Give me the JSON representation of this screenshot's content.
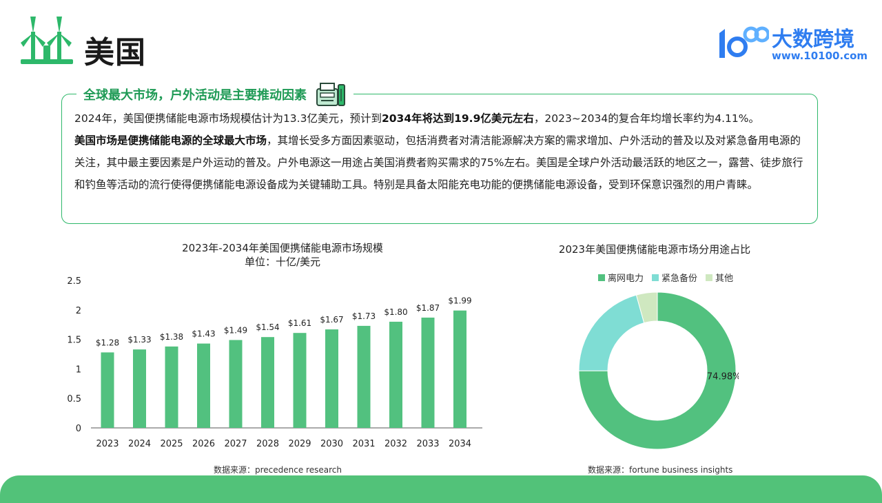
{
  "header": {
    "title": "美国",
    "brand_name": "大数跨境",
    "brand_url": "www.10100.com",
    "brand_logo_text": "100"
  },
  "card": {
    "heading": "全球最大市场，户外活动是主要推动因素",
    "p1_a": "2024年，美国便携储能电源市场规模估计为13.3亿美元，预计到",
    "p1_b": "2034年将达到19.9亿美元左右",
    "p1_c": "，2023~2034的复合年均增长率约为4.11%。",
    "p2_a": "美国市场是便携储能电源的全球最大市场",
    "p2_b": "，其增长受多方面因素驱动，包括消费者对清洁能源解决方案的需求增加、户外活动的普及以及对紧急备用电源的关注，其中最主要因素是户外运动的普及。户外电源这一用途占美国消费者购买需求的75%左右。美国是全球户外活动最活跃的地区之一，露营、徒步旅行和钓鱼等活动的流行使得便携储能电源设备成为关键辅助工具。特别是具备太阳能充电功能的便携储能电源设备，受到环保意识强烈的用户青睐。"
  },
  "colors": {
    "accent": "#2db86a",
    "bar": "#52c17f",
    "brand": "#2f7df0",
    "footer": "#52c279"
  },
  "chart_data": [
    {
      "type": "bar",
      "title": "2023年-2034年美国便携储能电源市场规模",
      "subtitle": "单位：十亿/美元",
      "categories": [
        "2023",
        "2024",
        "2025",
        "2026",
        "2027",
        "2028",
        "2029",
        "2030",
        "2031",
        "2032",
        "2033",
        "2034"
      ],
      "values": [
        1.28,
        1.33,
        1.38,
        1.43,
        1.49,
        1.54,
        1.61,
        1.67,
        1.73,
        1.8,
        1.87,
        1.99
      ],
      "data_labels": [
        "$1.28",
        "$1.33",
        "$1.38",
        "$1.43",
        "$1.49",
        "$1.54",
        "$1.61",
        "$1.67",
        "$1.73",
        "$1.80",
        "$1.87",
        "$1.99"
      ],
      "yticks": [
        "0",
        "0.5",
        "1",
        "1.5",
        "2",
        "2.5"
      ],
      "ylim": [
        0,
        2.5
      ],
      "grid": false,
      "color": "#52c17f",
      "source": "数据来源：precedence research"
    },
    {
      "type": "pie",
      "title": "2023年美国便携储能电源市场分用途占比",
      "labels": [
        "离网电力",
        "紧急备份",
        "其他"
      ],
      "values": [
        74.98,
        20.7,
        4.32
      ],
      "colors": [
        "#52c17f",
        "#7fddd4",
        "#cfe8c0"
      ],
      "data_labels": [
        "74.98%",
        "",
        ""
      ],
      "legend_position": "top",
      "source": "数据来源：fortune business insights"
    }
  ]
}
